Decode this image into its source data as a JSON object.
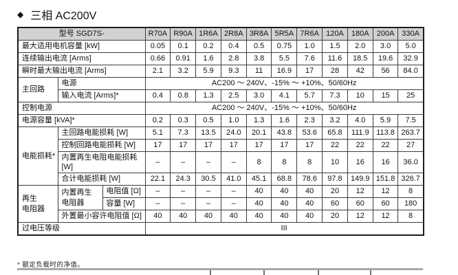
{
  "title": {
    "bullet": "◆",
    "text": "三相 AC200V"
  },
  "footnote": "* 额定负载时的净值。",
  "colors": {
    "header_bg": "#d2d2d2",
    "grid": "#3c3c3c",
    "stub_bar": "#a8a8a8",
    "stub_tick": "#707070"
  },
  "table": {
    "header_label": "型号 SGD7S-",
    "columns": [
      "R70A",
      "R90A",
      "1R6A",
      "2R8A",
      "3R8A",
      "5R5A",
      "7R6A",
      "120A",
      "180A",
      "200A",
      "330A"
    ],
    "rows": [
      [
        {
          "t": "最大适用电机容量 [kW]",
          "c": "lab",
          "cs": 3
        },
        {
          "t": "0.05"
        },
        {
          "t": "0.1"
        },
        {
          "t": "0.2"
        },
        {
          "t": "0.4"
        },
        {
          "t": "0.5"
        },
        {
          "t": "0.75"
        },
        {
          "t": "1.0"
        },
        {
          "t": "1.5"
        },
        {
          "t": "2.0"
        },
        {
          "t": "3.0"
        },
        {
          "t": "5.0"
        }
      ],
      [
        {
          "t": "连续输出电流 [Arms]",
          "c": "lab",
          "cs": 3
        },
        {
          "t": "0.66"
        },
        {
          "t": "0.91"
        },
        {
          "t": "1.6"
        },
        {
          "t": "2.8"
        },
        {
          "t": "3.8"
        },
        {
          "t": "5.5"
        },
        {
          "t": "7.6"
        },
        {
          "t": "11.6"
        },
        {
          "t": "18.5"
        },
        {
          "t": "19.6"
        },
        {
          "t": "32.9"
        }
      ],
      [
        {
          "t": "瞬时最大输出电流 [Arms]",
          "c": "lab",
          "cs": 3
        },
        {
          "t": "2.1"
        },
        {
          "t": "3.2"
        },
        {
          "t": "5.9"
        },
        {
          "t": "9.3"
        },
        {
          "t": "11"
        },
        {
          "t": "16.9"
        },
        {
          "t": "17"
        },
        {
          "t": "28"
        },
        {
          "t": "42"
        },
        {
          "t": "56"
        },
        {
          "t": "84.0"
        }
      ],
      [
        {
          "t": "主回路",
          "c": "lab",
          "rs": 2
        },
        {
          "t": "电源",
          "c": "lab",
          "cs": 2
        },
        {
          "t": "AC200 ～ 240V、-15% ～ +10%、50/60Hz",
          "c": "mid",
          "cs": 11
        }
      ],
      [
        {
          "t": "输入电流 [Arms]*",
          "c": "lab",
          "cs": 2
        },
        {
          "t": "0.4"
        },
        {
          "t": "0.8"
        },
        {
          "t": "1.3"
        },
        {
          "t": "2.5"
        },
        {
          "t": "3.0"
        },
        {
          "t": "4.1"
        },
        {
          "t": "5.7"
        },
        {
          "t": "7.3"
        },
        {
          "t": "10"
        },
        {
          "t": "15"
        },
        {
          "t": "25"
        }
      ],
      [
        {
          "t": "控制电源",
          "c": "lab",
          "cs": 3
        },
        {
          "t": "AC200 ～ 240V、-15% ～ +10%、50/60Hz",
          "c": "mid",
          "cs": 11
        }
      ],
      [
        {
          "t": "电源容量 [kVA]*",
          "c": "lab",
          "cs": 3
        },
        {
          "t": "0.2"
        },
        {
          "t": "0.3"
        },
        {
          "t": "0.5"
        },
        {
          "t": "1.0"
        },
        {
          "t": "1.3"
        },
        {
          "t": "1.6"
        },
        {
          "t": "2.3"
        },
        {
          "t": "3.2"
        },
        {
          "t": "4.0"
        },
        {
          "t": "5.9"
        },
        {
          "t": "7.5"
        }
      ],
      [
        {
          "t": "电能损耗*",
          "c": "lab",
          "rs": 4
        },
        {
          "t": "主回路电能损耗 [W]",
          "c": "lab",
          "cs": 2
        },
        {
          "t": "5.1"
        },
        {
          "t": "7.3"
        },
        {
          "t": "13.5"
        },
        {
          "t": "24.0"
        },
        {
          "t": "20.1"
        },
        {
          "t": "43.8"
        },
        {
          "t": "53.6"
        },
        {
          "t": "65.8"
        },
        {
          "t": "111.9"
        },
        {
          "t": "113.8"
        },
        {
          "t": "263.7"
        }
      ],
      [
        {
          "t": "控制回路电能损耗 [W]",
          "c": "lab",
          "cs": 2
        },
        {
          "t": "17"
        },
        {
          "t": "17"
        },
        {
          "t": "17"
        },
        {
          "t": "17"
        },
        {
          "t": "17"
        },
        {
          "t": "17"
        },
        {
          "t": "17"
        },
        {
          "t": "22"
        },
        {
          "t": "22"
        },
        {
          "t": "22"
        },
        {
          "t": "27"
        }
      ],
      [
        {
          "t": "内置再生电阻电能损耗 [W]",
          "c": "lab",
          "cs": 2
        },
        {
          "t": "–"
        },
        {
          "t": "–"
        },
        {
          "t": "–"
        },
        {
          "t": "–"
        },
        {
          "t": "8"
        },
        {
          "t": "8"
        },
        {
          "t": "8"
        },
        {
          "t": "10"
        },
        {
          "t": "16"
        },
        {
          "t": "16"
        },
        {
          "t": "36.0"
        }
      ],
      [
        {
          "t": "合计电能损耗 [W]",
          "c": "lab",
          "cs": 2
        },
        {
          "t": "22.1"
        },
        {
          "t": "24.3"
        },
        {
          "t": "30.5"
        },
        {
          "t": "41.0"
        },
        {
          "t": "45.1"
        },
        {
          "t": "68.8"
        },
        {
          "t": "78.6"
        },
        {
          "t": "97.8"
        },
        {
          "t": "149.9"
        },
        {
          "t": "151.8"
        },
        {
          "t": "326.7"
        }
      ],
      [
        {
          "t": "再生\n电阻器",
          "c": "lab pre",
          "rs": 3
        },
        {
          "t": "内置再生\n电阻器",
          "c": "lab pre",
          "rs": 2
        },
        {
          "t": "电阻值 [Ω]",
          "c": "lab"
        },
        {
          "t": "–"
        },
        {
          "t": "–"
        },
        {
          "t": "–"
        },
        {
          "t": "–"
        },
        {
          "t": "40"
        },
        {
          "t": "40"
        },
        {
          "t": "40"
        },
        {
          "t": "20"
        },
        {
          "t": "12"
        },
        {
          "t": "12"
        },
        {
          "t": "8"
        }
      ],
      [
        {
          "t": "容量 [W]",
          "c": "lab"
        },
        {
          "t": "–"
        },
        {
          "t": "–"
        },
        {
          "t": "–"
        },
        {
          "t": "–"
        },
        {
          "t": "40"
        },
        {
          "t": "40"
        },
        {
          "t": "40"
        },
        {
          "t": "60"
        },
        {
          "t": "60"
        },
        {
          "t": "60"
        },
        {
          "t": "180"
        }
      ],
      [
        {
          "t": "外置最小容许电阻值 [Ω]",
          "c": "lab",
          "cs": 2
        },
        {
          "t": "40"
        },
        {
          "t": "40"
        },
        {
          "t": "40"
        },
        {
          "t": "40"
        },
        {
          "t": "40"
        },
        {
          "t": "40"
        },
        {
          "t": "40"
        },
        {
          "t": "20"
        },
        {
          "t": "12"
        },
        {
          "t": "12"
        },
        {
          "t": "8"
        }
      ],
      [
        {
          "t": "过电压等级",
          "c": "lab",
          "cs": 3
        },
        {
          "t": "III",
          "c": "mid",
          "cs": 11
        }
      ]
    ]
  }
}
